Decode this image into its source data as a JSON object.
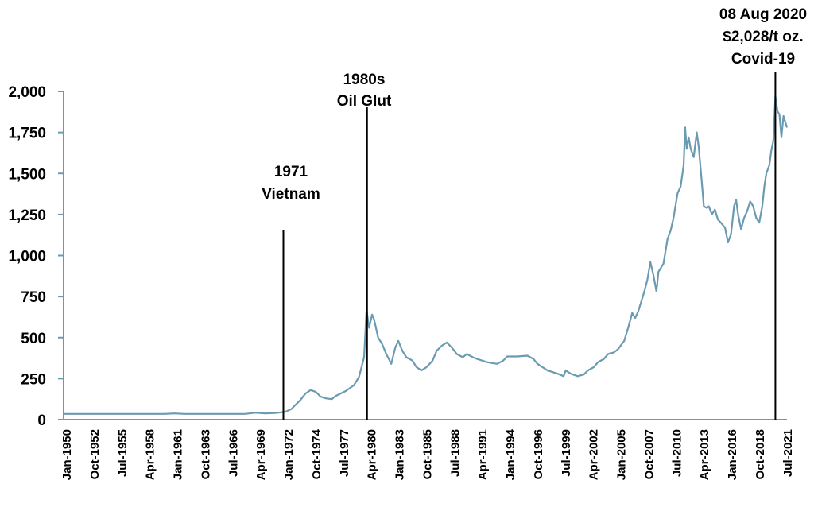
{
  "chart_data": {
    "type": "line",
    "title": "",
    "xlabel": "",
    "ylabel": "",
    "ylim": [
      0,
      2000
    ],
    "xlim": [
      "Jan-1950",
      "Oct-2021"
    ],
    "grid": false,
    "legend": "none",
    "line_color": "#6b9bb1",
    "y_ticks": [
      "0",
      "250",
      "500",
      "750",
      "1,000",
      "1,250",
      "1,500",
      "1,750",
      "2,000"
    ],
    "y_tick_values": [
      0,
      250,
      500,
      750,
      1000,
      1250,
      1500,
      1750,
      2000
    ],
    "x_ticks": [
      "Jan-1950",
      "Oct-1952",
      "Jul-1955",
      "Apr-1958",
      "Jan-1961",
      "Oct-1963",
      "Jul-1966",
      "Apr-1969",
      "Jan-1972",
      "Oct-1974",
      "Jul-1977",
      "Apr-1980",
      "Jan-1983",
      "Oct-1985",
      "Jul-1988",
      "Apr-1991",
      "Jan-1994",
      "Oct-1996",
      "Jul-1999",
      "Apr-2002",
      "Jan-2005",
      "Oct-2007",
      "Jul-2010",
      "Apr-2013",
      "Jan-2016",
      "Oct-2018",
      "Jul-2021"
    ],
    "series": [
      {
        "x": [
          1950,
          1960,
          1961,
          1962,
          1968,
          1969,
          1970,
          1971,
          1972,
          1972.6,
          1973,
          1973.5,
          1974,
          1974.5,
          1975,
          1975.5,
          1976,
          1976.6,
          1977,
          1978,
          1978.8,
          1979.3,
          1979.8,
          1980.05,
          1980.3,
          1980.6,
          1980.8,
          1981.2,
          1981.6,
          1982,
          1982.5,
          1982.9,
          1983.2,
          1983.6,
          1984,
          1984.6,
          1985,
          1985.5,
          1986,
          1986.6,
          1987,
          1987.5,
          1988,
          1988.5,
          1989,
          1989.6,
          1990,
          1990.6,
          1991,
          1992,
          1993,
          1993.6,
          1994,
          1995,
          1996,
          1996.6,
          1997,
          1998,
          1999,
          1999.6,
          1999.8,
          2000.3,
          2001,
          2001.6,
          2002,
          2002.6,
          2003,
          2003.6,
          2004,
          2004.6,
          2005,
          2005.6,
          2006,
          2006.4,
          2006.7,
          2007,
          2007.5,
          2007.9,
          2008.2,
          2008.5,
          2008.8,
          2009,
          2009.5,
          2009.9,
          2010.2,
          2010.5,
          2010.9,
          2011.2,
          2011.5,
          2011.65,
          2011.8,
          2012,
          2012.2,
          2012.5,
          2012.8,
          2013,
          2013.3,
          2013.5,
          2013.8,
          2014,
          2014.3,
          2014.6,
          2014.9,
          2015.2,
          2015.6,
          2015.9,
          2016.2,
          2016.5,
          2016.7,
          2016.9,
          2017.2,
          2017.5,
          2017.8,
          2018.1,
          2018.4,
          2018.7,
          2019,
          2019.3,
          2019.5,
          2019.7,
          2020,
          2020.2,
          2020.4,
          2020.6,
          2020.8,
          2021,
          2021.2,
          2021.4,
          2021.6,
          2021.75
        ],
        "y": [
          35,
          35,
          38,
          35,
          35,
          42,
          38,
          40,
          48,
          65,
          90,
          120,
          160,
          180,
          170,
          140,
          130,
          125,
          145,
          175,
          210,
          260,
          380,
          670,
          560,
          640,
          610,
          500,
          460,
          400,
          340,
          440,
          480,
          420,
          380,
          360,
          320,
          300,
          320,
          360,
          420,
          450,
          470,
          440,
          400,
          380,
          400,
          380,
          370,
          350,
          340,
          360,
          385,
          385,
          390,
          370,
          340,
          300,
          280,
          265,
          300,
          280,
          265,
          275,
          300,
          320,
          350,
          370,
          400,
          410,
          430,
          480,
          560,
          650,
          620,
          660,
          760,
          850,
          960,
          880,
          780,
          900,
          950,
          1100,
          1150,
          1230,
          1380,
          1420,
          1550,
          1780,
          1650,
          1720,
          1650,
          1600,
          1750,
          1660,
          1450,
          1300,
          1290,
          1300,
          1250,
          1280,
          1220,
          1200,
          1170,
          1080,
          1130,
          1300,
          1340,
          1250,
          1160,
          1230,
          1270,
          1330,
          1300,
          1230,
          1200,
          1300,
          1420,
          1500,
          1550,
          1640,
          1700,
          1970,
          1880,
          1860,
          1720,
          1850,
          1810,
          1780
        ]
      }
    ],
    "annotations": [
      {
        "x": 1971.8,
        "lines": [
          "1971",
          "Vietnam"
        ]
      },
      {
        "x": 1980.1,
        "lines": [
          "1980s",
          "Oil Glut"
        ]
      },
      {
        "x": 2020.6,
        "lines": [
          "08 Aug 2020",
          "$2,028/t oz.",
          "Covid-19"
        ]
      }
    ]
  }
}
